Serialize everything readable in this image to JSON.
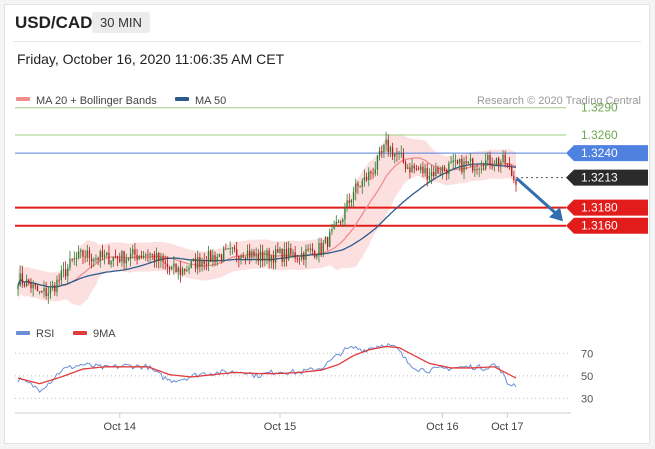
{
  "header": {
    "symbol": "USD/CAD",
    "timeframe": "30 MIN",
    "datetime": "Friday, October 16, 2020 11:06:35 AM CET"
  },
  "legend": {
    "items": [
      {
        "label": "MA 20 + Bollinger Bands",
        "color": "#f08c8c"
      },
      {
        "label": "MA 50",
        "color": "#2b5a8e"
      }
    ],
    "credit": "Research © 2020 Trading Central"
  },
  "rsi_legend": {
    "items": [
      {
        "label": "RSI",
        "color": "#6b8fd6"
      },
      {
        "label": "9MA",
        "color": "#e23b3b"
      }
    ]
  },
  "colors": {
    "up_candle": "#2e7d32",
    "down_candle": "#b71c1c",
    "resistance_green": "#9fcf7f",
    "pivot_blue": "#4f81e0",
    "support_red": "#e21b1b",
    "current_price_dark": "#2b2b2b",
    "arrow": "#2f6fb0",
    "bollinger_band_fill": "#fbd3d3"
  },
  "chart_data": [
    {
      "type": "candlestick",
      "title": "",
      "x_ticks": [
        "Oct 14",
        "Oct 15",
        "Oct 16",
        "Oct 17"
      ],
      "y_range": [
        1.3065,
        1.3315
      ],
      "levels": [
        {
          "label": "1.3290",
          "value": 1.329,
          "kind": "resistance"
        },
        {
          "label": "1.3260",
          "value": 1.326,
          "kind": "resistance"
        },
        {
          "label": "1.3240",
          "value": 1.324,
          "kind": "pivot"
        },
        {
          "label": "1.3213",
          "value": 1.3213,
          "kind": "current"
        },
        {
          "label": "1.3180",
          "value": 1.318,
          "kind": "support"
        },
        {
          "label": "1.3160",
          "value": 1.316,
          "kind": "support"
        }
      ],
      "price_path": [
        [
          0,
          1.3102
        ],
        [
          5,
          1.3096
        ],
        [
          10,
          1.3085
        ],
        [
          15,
          1.3088
        ],
        [
          20,
          1.3104
        ],
        [
          25,
          1.312
        ],
        [
          30,
          1.3128
        ],
        [
          40,
          1.3124
        ],
        [
          50,
          1.3126
        ],
        [
          60,
          1.313
        ],
        [
          65,
          1.3122
        ],
        [
          70,
          1.3112
        ],
        [
          75,
          1.311
        ],
        [
          85,
          1.3123
        ],
        [
          95,
          1.3128
        ],
        [
          105,
          1.3132
        ],
        [
          110,
          1.3125
        ],
        [
          120,
          1.3128
        ],
        [
          130,
          1.3128
        ],
        [
          140,
          1.3135
        ],
        [
          148,
          1.316
        ],
        [
          155,
          1.3198
        ],
        [
          160,
          1.321
        ],
        [
          165,
          1.3225
        ],
        [
          170,
          1.3248
        ],
        [
          175,
          1.3238
        ],
        [
          180,
          1.3225
        ],
        [
          190,
          1.3218
        ],
        [
          200,
          1.3225
        ],
        [
          210,
          1.3228
        ],
        [
          220,
          1.3232
        ],
        [
          225,
          1.323
        ],
        [
          229,
          1.3212
        ]
      ]
    },
    {
      "type": "line",
      "title": "",
      "y_ticks": [
        70,
        50,
        30
      ],
      "y_range": [
        25,
        80
      ],
      "series": [
        {
          "name": "RSI",
          "values": [
            [
              0,
              47
            ],
            [
              5,
              43
            ],
            [
              10,
              38
            ],
            [
              15,
              45
            ],
            [
              20,
              55
            ],
            [
              25,
              58
            ],
            [
              30,
              60
            ],
            [
              40,
              57
            ],
            [
              50,
              59
            ],
            [
              60,
              58
            ],
            [
              65,
              51
            ],
            [
              70,
              46
            ],
            [
              75,
              47
            ],
            [
              85,
              52
            ],
            [
              95,
              53
            ],
            [
              105,
              54
            ],
            [
              110,
              50
            ],
            [
              120,
              54
            ],
            [
              130,
              53
            ],
            [
              140,
              57
            ],
            [
              145,
              64
            ],
            [
              150,
              72
            ],
            [
              155,
              75
            ],
            [
              160,
              73
            ],
            [
              165,
              76
            ],
            [
              170,
              78
            ],
            [
              175,
              74
            ],
            [
              180,
              62
            ],
            [
              185,
              56
            ],
            [
              190,
              55
            ],
            [
              200,
              57
            ],
            [
              210,
              58
            ],
            [
              215,
              57
            ],
            [
              220,
              60
            ],
            [
              223,
              55
            ],
            [
              226,
              43
            ],
            [
              230,
              42
            ]
          ]
        },
        {
          "name": "9MA",
          "values": [
            [
              0,
              48
            ],
            [
              10,
              43
            ],
            [
              20,
              49
            ],
            [
              30,
              56
            ],
            [
              40,
              58
            ],
            [
              50,
              58
            ],
            [
              60,
              58
            ],
            [
              70,
              51
            ],
            [
              80,
              49
            ],
            [
              90,
              51
            ],
            [
              100,
              53
            ],
            [
              110,
              52
            ],
            [
              120,
              52
            ],
            [
              130,
              53
            ],
            [
              140,
              55
            ],
            [
              148,
              60
            ],
            [
              155,
              68
            ],
            [
              162,
              73
            ],
            [
              170,
              76
            ],
            [
              176,
              75
            ],
            [
              183,
              68
            ],
            [
              190,
              61
            ],
            [
              200,
              57
            ],
            [
              210,
              57
            ],
            [
              220,
              58
            ],
            [
              226,
              52
            ],
            [
              230,
              48
            ]
          ]
        }
      ]
    }
  ]
}
